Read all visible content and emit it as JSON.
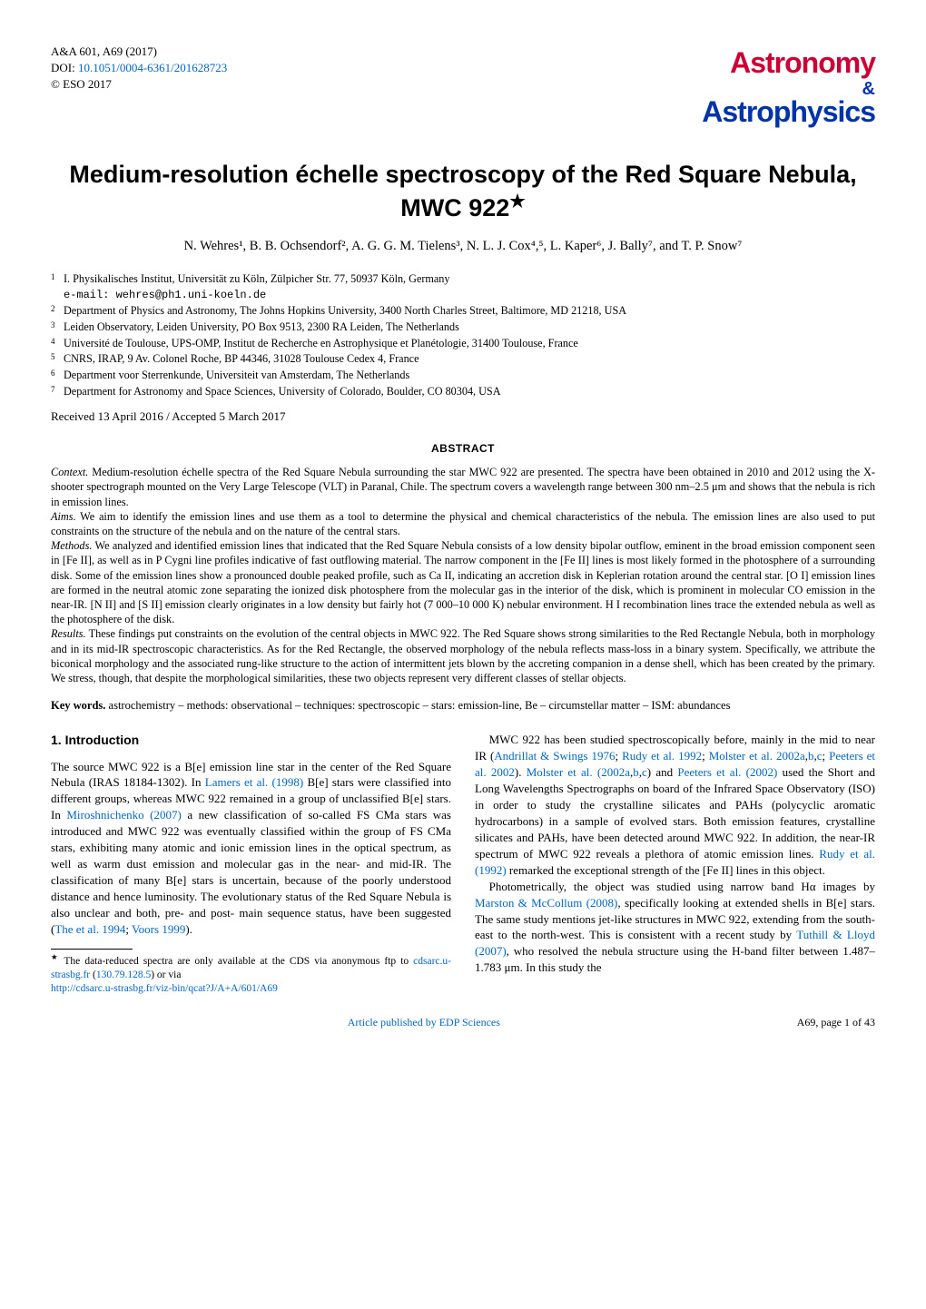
{
  "journal": {
    "ref": "A&A 601, A69 (2017)",
    "doi_label": "DOI: ",
    "doi": "10.1051/0004-6361/201628723",
    "copyright": "© ESO 2017"
  },
  "logo": {
    "line1": "Astronomy",
    "amp": "&",
    "line2": "Astrophysics"
  },
  "title": "Medium-resolution échelle spectroscopy of the Red Square Nebula, MWC 922",
  "title_star": "★",
  "authors": "N. Wehres¹, B. B. Ochsendorf², A. G. G. M. Tielens³, N. L. J. Cox⁴,⁵, L. Kaper⁶, J. Bally⁷, and T. P. Snow⁷",
  "affiliations": [
    {
      "n": "1",
      "text": "I. Physikalisches Institut, Universität zu Köln, Zülpicher Str. 77, 50937 Köln, Germany"
    },
    {
      "n": "",
      "text": "e-mail: wehres@ph1.uni-koeln.de",
      "mono": true
    },
    {
      "n": "2",
      "text": "Department of Physics and Astronomy, The Johns Hopkins University, 3400 North Charles Street, Baltimore, MD 21218, USA"
    },
    {
      "n": "3",
      "text": "Leiden Observatory, Leiden University, PO Box 9513, 2300 RA Leiden, The Netherlands"
    },
    {
      "n": "4",
      "text": "Université de Toulouse, UPS-OMP, Institut de Recherche en Astrophysique et Planétologie, 31400 Toulouse, France"
    },
    {
      "n": "5",
      "text": "CNRS, IRAP, 9 Av. Colonel Roche, BP 44346, 31028 Toulouse Cedex 4, France"
    },
    {
      "n": "6",
      "text": "Department voor Sterrenkunde, Universiteit van Amsterdam, The Netherlands"
    },
    {
      "n": "7",
      "text": "Department for Astronomy and Space Sciences, University of Colorado, Boulder, CO 80304, USA"
    }
  ],
  "received": "Received 13 April 2016 / Accepted 5 March 2017",
  "abstract_heading": "ABSTRACT",
  "abstract": {
    "context_label": "Context.",
    "context": " Medium-resolution échelle spectra of the Red Square Nebula surrounding the star MWC 922 are presented. The spectra have been obtained in 2010 and 2012 using the X-shooter spectrograph mounted on the Very Large Telescope (VLT) in Paranal, Chile. The spectrum covers a wavelength range between 300 nm–2.5 μm and shows that the nebula is rich in emission lines.",
    "aims_label": "Aims.",
    "aims": " We aim to identify the emission lines and use them as a tool to determine the physical and chemical characteristics of the nebula. The emission lines are also used to put constraints on the structure of the nebula and on the nature of the central stars.",
    "methods_label": "Methods.",
    "methods": " We analyzed and identified emission lines that indicated that the Red Square Nebula consists of a low density bipolar outflow, eminent in the broad emission component seen in [Fe II], as well as in P Cygni line profiles indicative of fast outflowing material. The narrow component in the [Fe II] lines is most likely formed in the photosphere of a surrounding disk. Some of the emission lines show a pronounced double peaked profile, such as Ca II, indicating an accretion disk in Keplerian rotation around the central star. [O I] emission lines are formed in the neutral atomic zone separating the ionized disk photosphere from the molecular gas in the interior of the disk, which is prominent in molecular CO emission in the near-IR. [N II] and [S II] emission clearly originates in a low density but fairly hot (7 000–10 000 K) nebular environment. H I recombination lines trace the extended nebula as well as the photosphere of the disk.",
    "results_label": "Results.",
    "results": " These findings put constraints on the evolution of the central objects in MWC 922. The Red Square shows strong similarities to the Red Rectangle Nebula, both in morphology and in its mid-IR spectroscopic characteristics. As for the Red Rectangle, the observed morphology of the nebula reflects mass-loss in a binary system. Specifically, we attribute the biconical morphology and the associated rung-like structure to the action of intermittent jets blown by the accreting companion in a dense shell, which has been created by the primary. We stress, though, that despite the morphological similarities, these two objects represent very different classes of stellar objects."
  },
  "keywords_label": "Key words.",
  "keywords": " astrochemistry – methods: observational – techniques: spectroscopic – stars: emission-line, Be – circumstellar matter – ISM: abundances",
  "section1_heading": "1. Introduction",
  "body": {
    "left": {
      "p1a": "The source MWC 922 is a B[e] emission line star in the center of the Red Square Nebula (IRAS 18184-1302). In ",
      "c1": "Lamers et al. (1998)",
      "p1b": " B[e] stars were classified into different groups, whereas MWC 922 remained in a group of unclassified B[e] stars. In ",
      "c2": "Miroshnichenko (2007)",
      "p1c": " a new classification of so-called FS CMa stars was introduced and MWC 922 was eventually classified within the group of FS CMa stars, exhibiting many atomic and ionic emission lines in the optical spectrum, as well as warm dust emission and molecular gas in the near- and mid-IR. The classification of many B[e] stars is uncertain, because of the poorly understood distance and hence luminosity. The evolutionary status of the Red Square Nebula is also unclear and both, pre- and post- main sequence status, have been suggested (",
      "c3": "The et al. 1994",
      "p1d": "; ",
      "c4": "Voors 1999",
      "p1e": ")."
    },
    "right": {
      "p1a": "MWC 922 has been studied spectroscopically before, mainly in the mid to near IR (",
      "c1": "Andrillat & Swings 1976",
      "p1b": "; ",
      "c2": "Rudy et al. 1992",
      "p1c": "; ",
      "c3": "Molster et al. 2002a",
      "p1d": ",",
      "c4": "b",
      "p1e": ",",
      "c5": "c",
      "p1f": "; ",
      "c6": "Peeters et al. 2002",
      "p1g": "). ",
      "c7": "Molster et al. (2002a",
      "p1h": ",",
      "c8": "b",
      "p1i": ",",
      "c9": "c",
      "p1j": ") and ",
      "c10": "Peeters et al. (2002)",
      "p1k": " used the Short and Long Wavelengths Spectrographs on board of the Infrared Space Observatory (ISO) in order to study the crystalline silicates and PAHs (polycyclic aromatic hydrocarbons) in a sample of evolved stars. Both emission features, crystalline silicates and PAHs, have been detected around MWC 922. In addition, the near-IR spectrum of MWC 922 reveals a plethora of atomic emission lines. ",
      "c11": "Rudy et al. (1992)",
      "p1l": " remarked the exceptional strength of the [Fe II] lines in this object.",
      "p2a": "Photometrically, the object was studied using narrow band Hα images by ",
      "c12": "Marston & McCollum (2008)",
      "p2b": ", specifically looking at extended shells in B[e] stars. The same study mentions jet-like structures in MWC 922, extending from the south-east to the north-west. This is consistent with a recent study by ",
      "c13": "Tuthill & Lloyd (2007)",
      "p2c": ", who resolved the nebula structure using the H-band filter between 1.487–1.783 μm. In this study the"
    }
  },
  "footnote": {
    "star": "★",
    "t1": " The data-reduced spectra are only available at the CDS via anonymous ftp to ",
    "l1": "cdsarc.u-strasbg.fr",
    "t2": " (",
    "l2": "130.79.128.5",
    "t3": ") or via ",
    "l3": "http://cdsarc.u-strasbg.fr/viz-bin/qcat?J/A+A/601/A69"
  },
  "footer": {
    "center": "Article published by EDP Sciences",
    "right": "A69, page 1 of 43"
  },
  "colors": {
    "link": "#0066cc",
    "logo_red": "#cc0033",
    "logo_blue": "#0033aa",
    "text": "#000000",
    "background": "#ffffff"
  }
}
